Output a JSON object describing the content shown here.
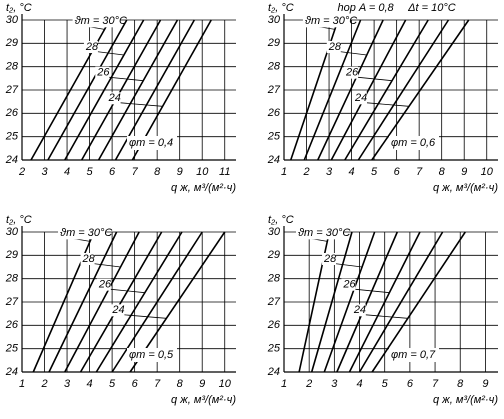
{
  "chart_data": [
    {
      "type": "line",
      "ylabel": "t₂, °C",
      "xlabel": "q ж, м³/(м²·ч)",
      "xlim": [
        2,
        11.5
      ],
      "xticks": [
        2,
        3,
        4,
        5,
        6,
        7,
        8,
        9,
        10,
        11
      ],
      "ylim": [
        24,
        30
      ],
      "yticks": [
        24,
        25,
        26,
        27,
        28,
        29,
        30
      ],
      "grid": true,
      "color": "#000000",
      "annotations": [
        "φт = 0,4"
      ],
      "series": [
        {
          "name": "ϑт = 30°C",
          "x": [
            2.4,
            5.9
          ],
          "values": [
            24,
            30
          ]
        },
        {
          "x": [
            3.15,
            6.65
          ],
          "values": [
            24,
            30
          ]
        },
        {
          "name": "28",
          "x": [
            3.9,
            7.4
          ],
          "values": [
            24,
            30
          ]
        },
        {
          "x": [
            4.65,
            8.15
          ],
          "values": [
            24,
            30
          ]
        },
        {
          "name": "26",
          "x": [
            5.4,
            8.9
          ],
          "values": [
            24,
            30
          ]
        },
        {
          "x": [
            6.15,
            9.65
          ],
          "values": [
            24,
            30
          ]
        },
        {
          "name": "24",
          "x": [
            6.9,
            10.4
          ],
          "values": [
            24,
            30
          ]
        }
      ]
    },
    {
      "type": "line",
      "ylabel": "t₂, °C",
      "xlabel": "q ж, м³/(м²·ч)",
      "xlim": [
        1,
        10.5
      ],
      "xticks": [
        1,
        2,
        3,
        4,
        5,
        6,
        7,
        8,
        9,
        10
      ],
      "ylim": [
        24,
        30
      ],
      "yticks": [
        24,
        25,
        26,
        27,
        28,
        29,
        30
      ],
      "grid": true,
      "color": "#000000",
      "annotations": [
        "φт = 0,6",
        "hор A = 0,8",
        "Δt = 10°C"
      ],
      "series": [
        {
          "name": "ϑт = 30°C",
          "x": [
            1.3,
            3.4
          ],
          "values": [
            24,
            30
          ]
        },
        {
          "x": [
            1.9,
            4.4
          ],
          "values": [
            24,
            30
          ]
        },
        {
          "name": "28",
          "x": [
            2.5,
            5.4
          ],
          "values": [
            24,
            30
          ]
        },
        {
          "x": [
            3.1,
            6.4
          ],
          "values": [
            24,
            30
          ]
        },
        {
          "name": "26",
          "x": [
            3.7,
            7.4
          ],
          "values": [
            24,
            30
          ]
        },
        {
          "x": [
            4.3,
            8.3
          ],
          "values": [
            24,
            30
          ]
        },
        {
          "name": "24",
          "x": [
            4.9,
            9.2
          ],
          "values": [
            24,
            30
          ]
        }
      ]
    },
    {
      "type": "line",
      "ylabel": "t₂, °C",
      "xlabel": "q ж, м³/(м²·ч)",
      "xlim": [
        1,
        10.5
      ],
      "xticks": [
        1,
        2,
        3,
        4,
        5,
        6,
        7,
        8,
        9,
        10
      ],
      "ylim": [
        24,
        30
      ],
      "yticks": [
        24,
        25,
        26,
        27,
        28,
        29,
        30
      ],
      "grid": true,
      "color": "#000000",
      "annotations": [
        "φт = 0,5"
      ],
      "series": [
        {
          "name": "ϑт = 30°C",
          "x": [
            1.5,
            4.2
          ],
          "values": [
            24,
            30
          ]
        },
        {
          "x": [
            2.2,
            5.2
          ],
          "values": [
            24,
            30
          ]
        },
        {
          "name": "28",
          "x": [
            2.9,
            6.2
          ],
          "values": [
            24,
            30
          ]
        },
        {
          "x": [
            3.6,
            7.2
          ],
          "values": [
            24,
            30
          ]
        },
        {
          "name": "26",
          "x": [
            4.3,
            8.1
          ],
          "values": [
            24,
            30
          ]
        },
        {
          "x": [
            5.0,
            9.0
          ],
          "values": [
            24,
            30
          ]
        },
        {
          "name": "24",
          "x": [
            5.8,
            10.0
          ],
          "values": [
            24,
            30
          ]
        }
      ]
    },
    {
      "type": "line",
      "ylabel": "t₂, °C",
      "xlabel": "q ж, м³/(м²·ч)",
      "xlim": [
        1,
        9.5
      ],
      "xticks": [
        1,
        2,
        3,
        4,
        5,
        6,
        7,
        8,
        9
      ],
      "ylim": [
        24,
        30
      ],
      "yticks": [
        24,
        25,
        26,
        27,
        28,
        29,
        30
      ],
      "grid": true,
      "color": "#000000",
      "annotations": [
        "φт = 0,7"
      ],
      "series": [
        {
          "name": "ϑт = 30°C",
          "x": [
            1.6,
            2.8
          ],
          "values": [
            24,
            30
          ]
        },
        {
          "x": [
            2.1,
            3.7
          ],
          "values": [
            24,
            30
          ]
        },
        {
          "name": "28",
          "x": [
            2.6,
            4.6
          ],
          "values": [
            24,
            30
          ]
        },
        {
          "x": [
            3.1,
            5.5
          ],
          "values": [
            24,
            30
          ]
        },
        {
          "name": "26",
          "x": [
            3.6,
            6.4
          ],
          "values": [
            24,
            30
          ]
        },
        {
          "x": [
            4.0,
            7.3
          ],
          "values": [
            24,
            30
          ]
        },
        {
          "name": "24",
          "x": [
            4.5,
            8.2
          ],
          "values": [
            24,
            30
          ]
        }
      ]
    }
  ]
}
